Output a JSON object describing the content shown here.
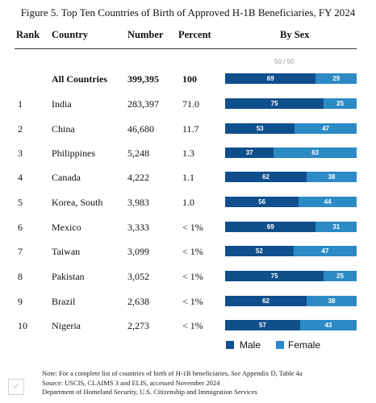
{
  "title": "Figure 5. Top Ten Countries of Birth of Approved H-1B Beneficiaries, FY 2024",
  "headers": {
    "rank": "Rank",
    "country": "Country",
    "number": "Number",
    "percent": "Percent",
    "bysex": "By Sex"
  },
  "scale_label": "50 / 50",
  "colors": {
    "male": "#0f4f8c",
    "female": "#2c8ac4"
  },
  "rows": [
    {
      "rank": "",
      "country": "All Countries",
      "number": "399,395",
      "percent": "100",
      "male": 69,
      "female": 29,
      "bold": true
    },
    {
      "rank": "1",
      "country": "India",
      "number": "283,397",
      "percent": "71.0",
      "male": 75,
      "female": 25
    },
    {
      "rank": "2",
      "country": "China",
      "number": "46,680",
      "percent": "11.7",
      "male": 53,
      "female": 47
    },
    {
      "rank": "3",
      "country": "Philippines",
      "number": "5,248",
      "percent": "1.3",
      "male": 37,
      "female": 63
    },
    {
      "rank": "4",
      "country": "Canada",
      "number": "4,222",
      "percent": "1.1",
      "male": 62,
      "female": 38
    },
    {
      "rank": "5",
      "country": "Korea, South",
      "number": "3,983",
      "percent": "1.0",
      "male": 56,
      "female": 44
    },
    {
      "rank": "6",
      "country": "Mexico",
      "number": "3,333",
      "percent": "< 1%",
      "male": 69,
      "female": 31
    },
    {
      "rank": "7",
      "country": "Taiwan",
      "number": "3,099",
      "percent": "< 1%",
      "male": 52,
      "female": 47
    },
    {
      "rank": "8",
      "country": "Pakistan",
      "number": "3,052",
      "percent": "< 1%",
      "male": 75,
      "female": 25
    },
    {
      "rank": "9",
      "country": "Brazil",
      "number": "2,638",
      "percent": "< 1%",
      "male": 62,
      "female": 38
    },
    {
      "rank": "10",
      "country": "Nigeria",
      "number": "2,273",
      "percent": "< 1%",
      "male": 57,
      "female": 43
    }
  ],
  "legend": {
    "male": "Male",
    "female": "Female"
  },
  "notes": {
    "line1_prefix": "Note: For a complete list of countries of birth of H-1B beneficiaries, ",
    "line1_see": "See",
    "line1_suffix": " Appendix D, Table 4a",
    "line2": "Source: USCIS, CLAIMS 3 and ELIS, accessed November 2024",
    "line3": "Department of Homeland Security, U.S. Citizenship and Immigration Services"
  },
  "chart_data": {
    "type": "bar",
    "title": "Figure 5. Top Ten Countries of Birth of Approved H-1B Beneficiaries, FY 2024",
    "categories": [
      "All Countries",
      "India",
      "China",
      "Philippines",
      "Canada",
      "Korea, South",
      "Mexico",
      "Taiwan",
      "Pakistan",
      "Brazil",
      "Nigeria"
    ],
    "series": [
      {
        "name": "Male",
        "values": [
          69,
          75,
          53,
          37,
          62,
          56,
          69,
          52,
          75,
          62,
          57
        ]
      },
      {
        "name": "Female",
        "values": [
          29,
          25,
          47,
          63,
          38,
          44,
          31,
          47,
          25,
          38,
          43
        ]
      }
    ],
    "stacked": true,
    "orientation": "horizontal",
    "xlim": [
      0,
      100
    ],
    "legend_position": "bottom",
    "grid": false
  }
}
